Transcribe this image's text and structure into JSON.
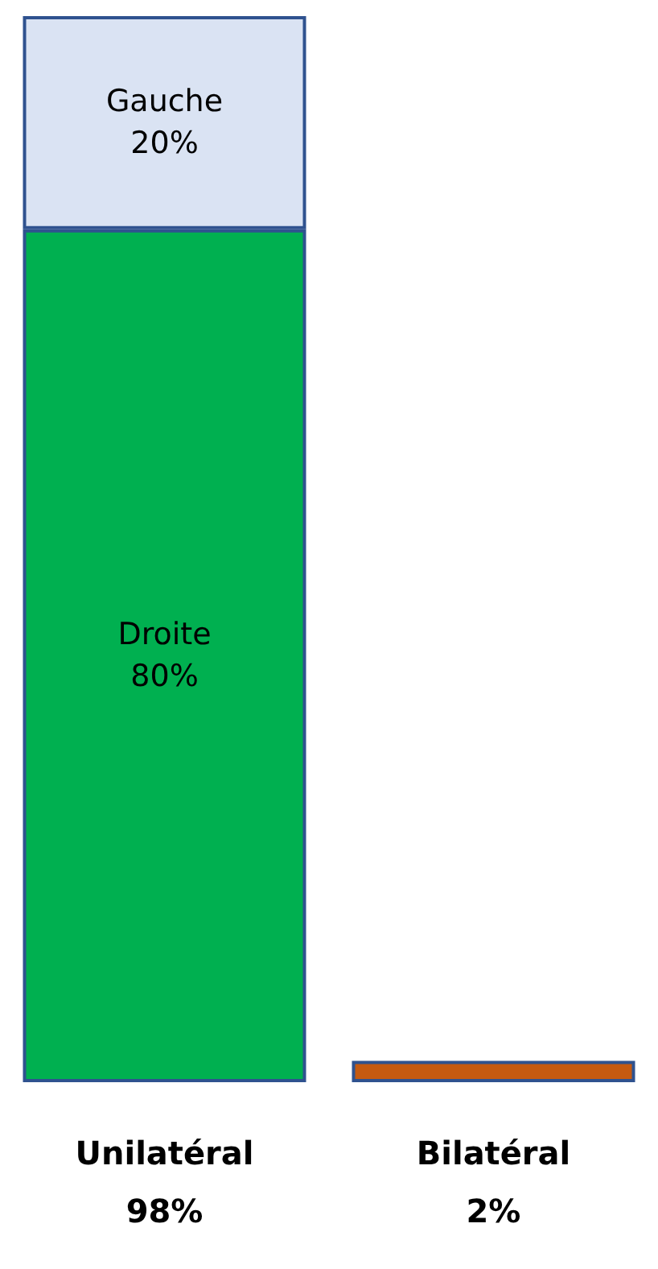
{
  "chart_data": {
    "type": "bar",
    "stacked": true,
    "categories": [
      "Unilatéral\n98%",
      "Bilatéral\n2%"
    ],
    "series": [
      {
        "name": "Droite",
        "color": "#00b050",
        "values": [
          80,
          null
        ],
        "value_labels": [
          "80%",
          null
        ]
      },
      {
        "name": "Gauche",
        "color": "#dae3f3",
        "values": [
          20,
          null
        ],
        "value_labels": [
          "20%",
          null
        ]
      },
      {
        "color": "#c55a11",
        "values": [
          null,
          2
        ]
      }
    ]
  }
}
